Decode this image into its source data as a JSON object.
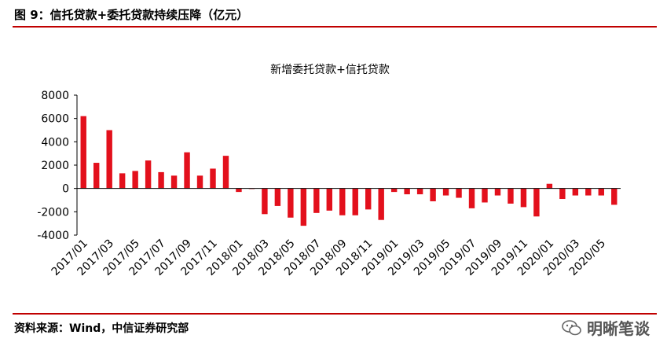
{
  "figure": {
    "header": "图 9：信托贷款+委托贷款持续压降（亿元）",
    "source": "资料来源：Wind，中信证券研究部",
    "watermark": "明晰笔谈",
    "accent_color": "#c00000",
    "bar_color": "#e3101c"
  },
  "chart_data": {
    "type": "bar",
    "title": "新增委托贷款+信托贷款",
    "ylim": [
      -4000,
      8000
    ],
    "yticks": [
      8000,
      6000,
      4000,
      2000,
      0,
      -2000,
      -4000
    ],
    "categories": [
      "2017/01",
      "2017/02",
      "2017/03",
      "2017/04",
      "2017/05",
      "2017/06",
      "2017/07",
      "2017/08",
      "2017/09",
      "2017/10",
      "2017/11",
      "2017/12",
      "2018/01",
      "2018/02",
      "2018/03",
      "2018/04",
      "2018/05",
      "2018/06",
      "2018/07",
      "2018/08",
      "2018/09",
      "2018/10",
      "2018/11",
      "2018/12",
      "2019/01",
      "2019/02",
      "2019/03",
      "2019/04",
      "2019/05",
      "2019/06",
      "2019/07",
      "2019/08",
      "2019/09",
      "2019/10",
      "2019/11",
      "2019/12",
      "2020/01",
      "2020/02",
      "2020/03",
      "2020/04",
      "2020/05",
      "2020/06"
    ],
    "tick_labels": [
      "2017/01",
      "2017/03",
      "2017/05",
      "2017/07",
      "2017/09",
      "2017/11",
      "2018/01",
      "2018/03",
      "2018/05",
      "2018/07",
      "2018/09",
      "2018/11",
      "2019/01",
      "2019/03",
      "2019/05",
      "2019/07",
      "2019/09",
      "2019/11",
      "2020/01",
      "2020/03",
      "2020/05"
    ],
    "values": [
      6200,
      2200,
      5000,
      1300,
      1500,
      2400,
      1400,
      1100,
      3100,
      1100,
      1700,
      2800,
      -300,
      -50,
      -2200,
      -1500,
      -2500,
      -3200,
      -2100,
      -1900,
      -2300,
      -2300,
      -1800,
      -2700,
      -300,
      -500,
      -500,
      -1100,
      -600,
      -800,
      -1700,
      -1200,
      -600,
      -1300,
      -1600,
      -2400,
      400,
      -900,
      -600,
      -600,
      -600,
      -1400
    ]
  }
}
